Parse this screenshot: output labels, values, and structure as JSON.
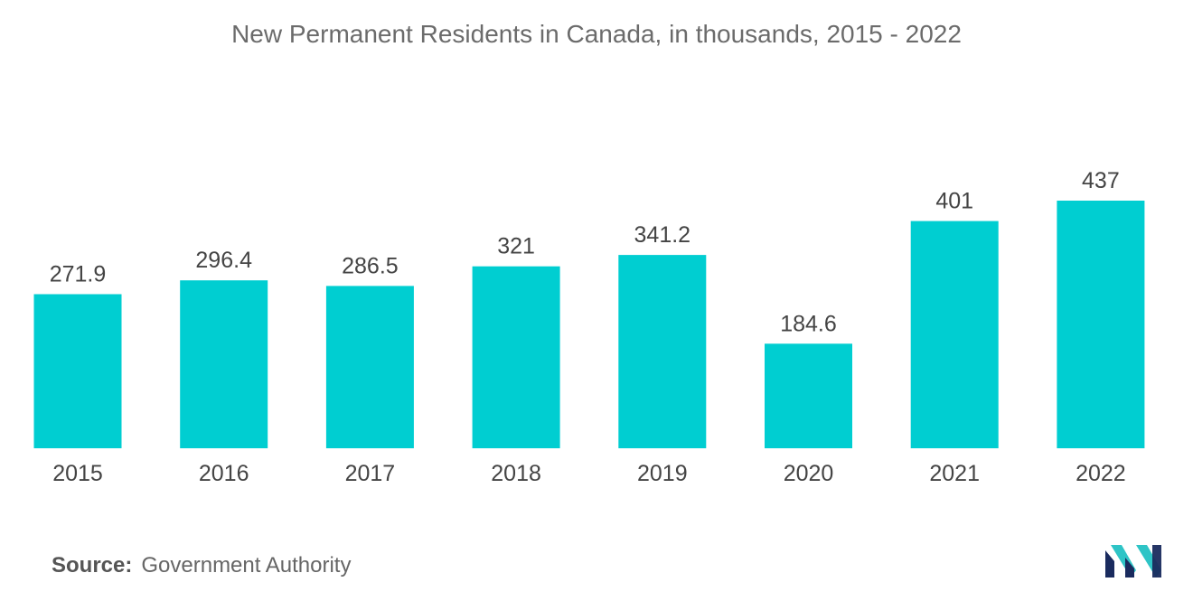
{
  "chart_data": {
    "type": "bar",
    "title": "New Permanent Residents in Canada, in thousands, 2015 - 2022",
    "categories": [
      "2015",
      "2016",
      "2017",
      "2018",
      "2019",
      "2020",
      "2021",
      "2022"
    ],
    "values": [
      271.9,
      296.4,
      286.5,
      321,
      341.2,
      184.6,
      401,
      437
    ],
    "value_labels": [
      "271.9",
      "296.4",
      "286.5",
      "321",
      "341.2",
      "184.6",
      "401",
      "437"
    ],
    "xlabel": "",
    "ylabel": "",
    "ylim": [
      0,
      437
    ],
    "grid": false,
    "legend": "none",
    "bar_color": "#00ced1"
  },
  "source": {
    "label": "Source:",
    "value": "Government Authority"
  },
  "logo": {
    "icon": "mordor-intelligence-logo-icon",
    "colors": [
      "#1a2b5e",
      "#2ec4c6"
    ]
  }
}
